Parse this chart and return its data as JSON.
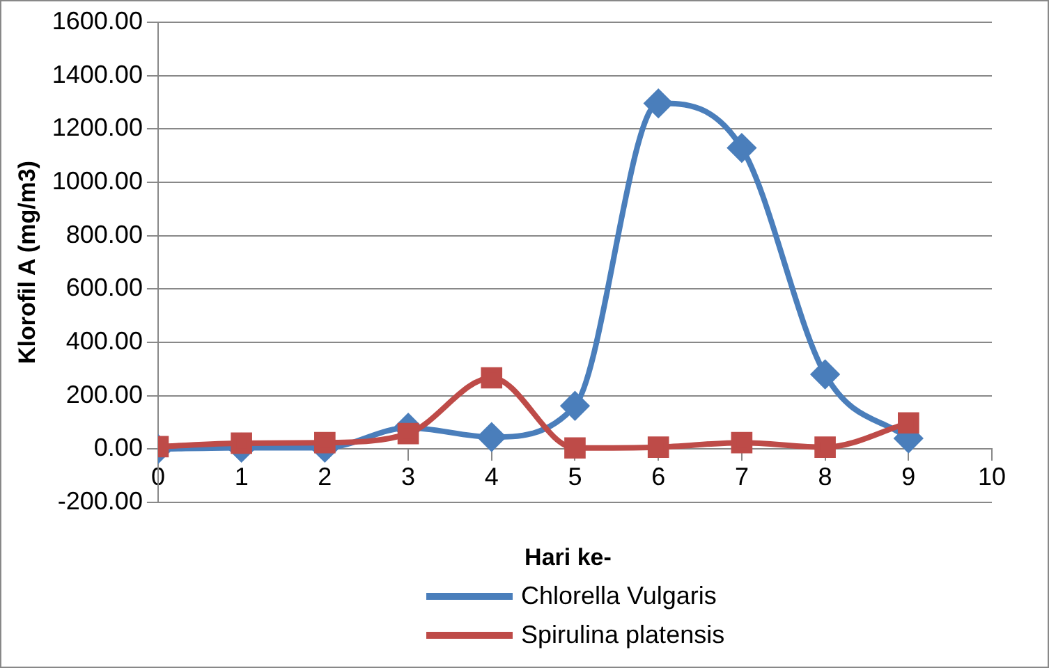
{
  "chart_data": {
    "type": "line",
    "xlabel": "Hari ke-",
    "ylabel": "Klorofil A (mg/m3)",
    "x": [
      0,
      1,
      2,
      3,
      4,
      5,
      6,
      7,
      8,
      9
    ],
    "series": [
      {
        "name": "Chlorella Vulgaris",
        "color": "#4a7ebb",
        "marker": "diamond",
        "values": [
          0,
          5,
          5,
          80,
          45,
          162,
          1296,
          1129,
          280,
          40
        ]
      },
      {
        "name": "Spirulina platensis",
        "color": "#be4b48",
        "marker": "square",
        "values": [
          9,
          22,
          24,
          58,
          267,
          4,
          7,
          24,
          7,
          98
        ]
      }
    ],
    "xlim": [
      0,
      10
    ],
    "xticks": [
      0,
      1,
      2,
      3,
      4,
      5,
      6,
      7,
      8,
      9,
      10
    ],
    "ylim": [
      -200,
      1600
    ],
    "yticks": [
      {
        "value": -200,
        "label": "-200.00"
      },
      {
        "value": 0,
        "label": "0.00"
      },
      {
        "value": 200,
        "label": "200.00"
      },
      {
        "value": 400,
        "label": "400.00"
      },
      {
        "value": 600,
        "label": "600.00"
      },
      {
        "value": 800,
        "label": "800.00"
      },
      {
        "value": 1000,
        "label": "1000.00"
      },
      {
        "value": 1200,
        "label": "1200.00"
      },
      {
        "value": 1400,
        "label": "1400.00"
      },
      {
        "value": 1600,
        "label": "1600.00"
      }
    ],
    "grid": "y",
    "legend": "bottom"
  }
}
